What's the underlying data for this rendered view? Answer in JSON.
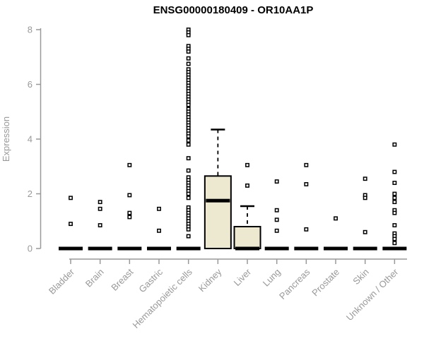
{
  "page": {
    "background": "#ffffff"
  },
  "chart_data": {
    "type": "boxplot",
    "title": "ENSG00000180409 - OR10AA1P",
    "ylabel": "Expression",
    "xlabel": "",
    "ylim": [
      0,
      8
    ],
    "yticks": [
      0,
      2,
      4,
      6,
      8
    ],
    "grid": false,
    "legend": "none",
    "colors": {
      "box_fill": "#EDE8D0",
      "box_stroke": "#000000",
      "median": "#000000",
      "outlier": "#000000",
      "axis": "#999999",
      "tick_label": "#999999",
      "title": "#000000"
    },
    "categories": [
      "Bladder",
      "Brain",
      "Breast",
      "Gastric",
      "Hematopoietic cells",
      "Kidney",
      "Liver",
      "Lung",
      "Pancreas",
      "Prostate",
      "Skin",
      "Unknown / Other"
    ],
    "boxes": [
      {
        "category": "Bladder",
        "median": 0,
        "q1": 0,
        "q3": 0,
        "whisker_low": 0,
        "whisker_high": 0,
        "outliers": [
          1.85,
          0.9
        ]
      },
      {
        "category": "Brain",
        "median": 0,
        "q1": 0,
        "q3": 0,
        "whisker_low": 0,
        "whisker_high": 0,
        "outliers": [
          1.7,
          1.45,
          0.85
        ]
      },
      {
        "category": "Breast",
        "median": 0,
        "q1": 0,
        "q3": 0,
        "whisker_low": 0,
        "whisker_high": 0,
        "outliers": [
          3.05,
          1.95,
          1.3,
          1.15
        ]
      },
      {
        "category": "Gastric",
        "median": 0,
        "q1": 0,
        "q3": 0,
        "whisker_low": 0,
        "whisker_high": 0,
        "outliers": [
          1.45,
          0.65
        ]
      },
      {
        "category": "Hematopoietic cells",
        "median": 0,
        "q1": 0,
        "q3": 0,
        "whisker_low": 0,
        "whisker_high": 0,
        "outliers": [
          8.0,
          7.9,
          7.8,
          7.4,
          7.3,
          7.2,
          6.95,
          6.75,
          6.55,
          6.45,
          6.35,
          6.25,
          6.15,
          6.05,
          5.95,
          5.85,
          5.75,
          5.65,
          5.55,
          5.45,
          5.35,
          5.25,
          5.1,
          5.0,
          4.9,
          4.8,
          4.7,
          4.6,
          4.5,
          4.4,
          4.3,
          4.2,
          4.1,
          3.95,
          3.8,
          3.3,
          2.85,
          2.6,
          2.5,
          2.4,
          2.3,
          2.2,
          2.1,
          2.0,
          1.85,
          1.5,
          1.4,
          1.3,
          1.2,
          1.1,
          1.0,
          0.9,
          0.8,
          0.7,
          0.45
        ]
      },
      {
        "category": "Kidney",
        "median": 1.75,
        "q1": 0,
        "q3": 2.65,
        "whisker_low": 0,
        "whisker_high": 4.35,
        "outliers": []
      },
      {
        "category": "Liver",
        "median": 0,
        "q1": 0,
        "q3": 0.8,
        "whisker_low": 0,
        "whisker_high": 1.55,
        "outliers": [
          3.05,
          2.3
        ]
      },
      {
        "category": "Lung",
        "median": 0,
        "q1": 0,
        "q3": 0,
        "whisker_low": 0,
        "whisker_high": 0,
        "outliers": [
          2.45,
          1.4,
          1.05,
          0.65
        ]
      },
      {
        "category": "Pancreas",
        "median": 0,
        "q1": 0,
        "q3": 0,
        "whisker_low": 0,
        "whisker_high": 0,
        "outliers": [
          3.05,
          2.35,
          0.7
        ]
      },
      {
        "category": "Prostate",
        "median": 0,
        "q1": 0,
        "q3": 0,
        "whisker_low": 0,
        "whisker_high": 0,
        "outliers": [
          1.1
        ]
      },
      {
        "category": "Skin",
        "median": 0,
        "q1": 0,
        "q3": 0,
        "whisker_low": 0,
        "whisker_high": 0,
        "outliers": [
          2.55,
          1.95,
          1.85,
          0.6
        ]
      },
      {
        "category": "Unknown / Other",
        "median": 0,
        "q1": 0,
        "q3": 0,
        "whisker_low": 0,
        "whisker_high": 0,
        "outliers": [
          3.8,
          2.8,
          2.4,
          2.0,
          1.85,
          1.7,
          1.4,
          1.3,
          0.85,
          0.55,
          0.45,
          0.35,
          0.2
        ]
      }
    ]
  }
}
